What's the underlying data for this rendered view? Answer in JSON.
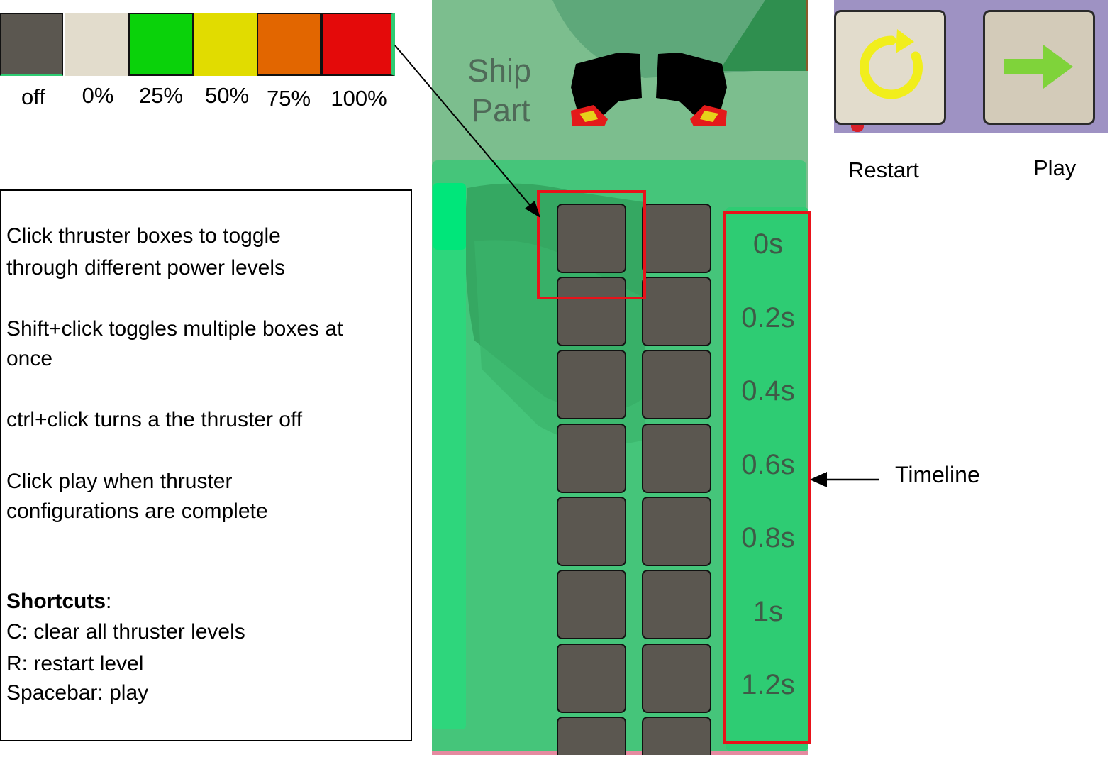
{
  "legend": {
    "items": [
      {
        "label": "off",
        "color": "#5b5750"
      },
      {
        "label": "0%",
        "color": "#e2dccc"
      },
      {
        "label": "25%",
        "color": "#0ad20a"
      },
      {
        "label": "50%",
        "color": "#e1dc00"
      },
      {
        "label": "75%",
        "color": "#e26600"
      },
      {
        "label": "100%",
        "color": "#e40a0a"
      }
    ]
  },
  "instructions": {
    "lines": [
      "Click thruster boxes to toggle",
      "through different power levels",
      "Shift+click toggles multiple boxes at",
      "once",
      "ctrl+click turns a the thruster off",
      "Click play when thruster",
      "configurations are complete"
    ],
    "shortcuts_heading": "Shortcuts",
    "shortcuts_colon": ":",
    "shortcuts": [
      "C: clear all thruster levels",
      "R: restart level",
      "Spacebar: play"
    ]
  },
  "game": {
    "ship_part_label_1": "Ship",
    "ship_part_label_2": "Part",
    "timeline_labels": [
      "0s",
      "0.2s",
      "0.4s",
      "0.6s",
      "0.8s",
      "1s",
      "1.2s"
    ],
    "thruster_state": "off",
    "colors": {
      "box_off": "#5b5750",
      "panel": "#45c57a",
      "timeline": "#2ecc73",
      "highlight": "#e8131a"
    }
  },
  "controls": {
    "restart_label": "Restart",
    "restart_icon": "restart-icon",
    "play_label": "Play",
    "play_icon": "arrow-right-icon",
    "toolbar_color": "#9e92c3"
  },
  "annotations": {
    "timeline_label": "Timeline"
  }
}
